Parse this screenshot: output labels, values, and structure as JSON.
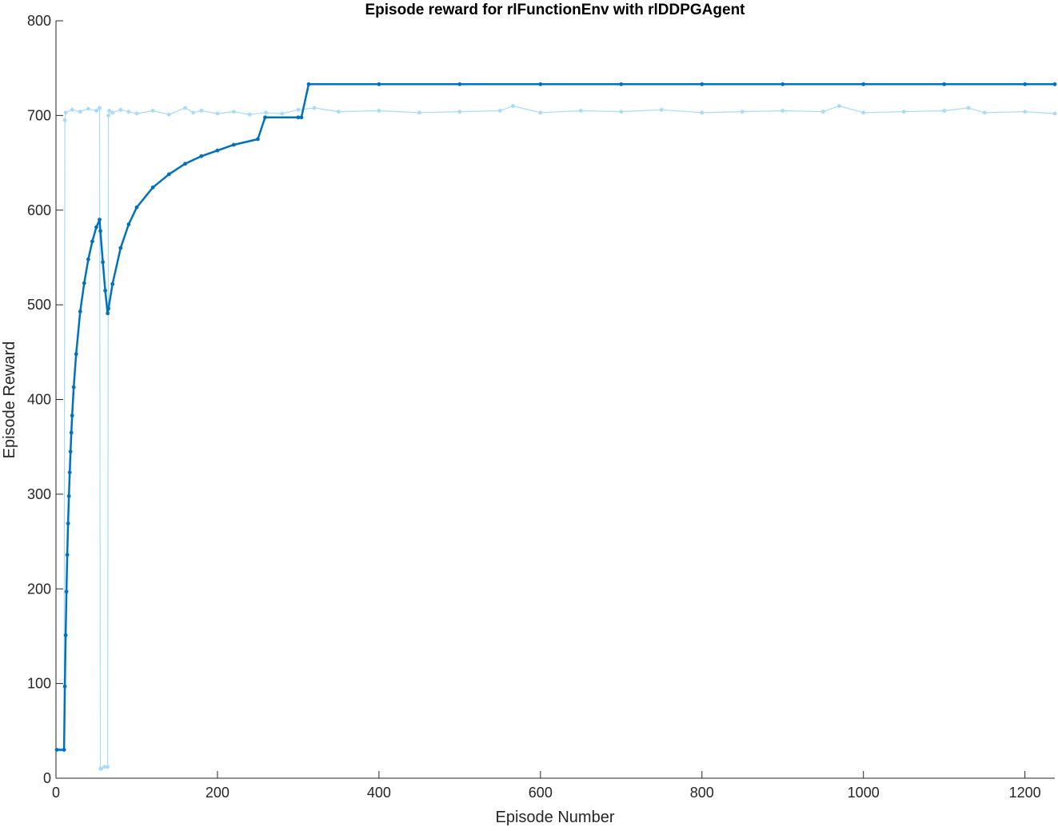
{
  "chart_data": {
    "type": "line",
    "title": "Episode reward for rlFunctionEnv with rlDDPGAgent",
    "xlabel": "Episode Number",
    "ylabel": "Episode Reward",
    "xlim": [
      0,
      1237
    ],
    "ylim": [
      0,
      800
    ],
    "x_ticks": [
      "0",
      "200",
      "400",
      "600",
      "800",
      "1000",
      "1200"
    ],
    "y_ticks": [
      "0",
      "100",
      "200",
      "300",
      "400",
      "500",
      "600",
      "700",
      "800"
    ],
    "grid": false,
    "legend": "none",
    "colors": {
      "episode_reward": "#a6dcf7",
      "average_reward": "#0072bd",
      "axes": "#262626"
    },
    "series": [
      {
        "key": "episode_reward",
        "x": [
          1,
          5,
          9,
          10,
          11,
          12,
          20,
          30,
          40,
          50,
          54,
          55,
          56,
          60,
          64,
          65,
          66,
          70,
          80,
          90,
          100,
          120,
          140,
          160,
          170,
          180,
          200,
          220,
          240,
          260,
          280,
          300,
          320,
          350,
          400,
          450,
          500,
          550,
          566,
          600,
          650,
          700,
          750,
          800,
          850,
          900,
          950,
          970,
          1000,
          1050,
          1100,
          1130,
          1150,
          1200,
          1237
        ],
        "y": [
          30,
          30,
          30,
          30,
          695,
          703,
          706,
          704,
          707,
          705,
          708,
          10,
          10,
          12,
          12,
          700,
          705,
          703,
          706,
          704,
          702,
          705,
          701,
          708,
          703,
          705,
          702,
          704,
          701,
          703,
          702,
          706,
          708,
          704,
          705,
          703,
          704,
          705,
          710,
          703,
          705,
          704,
          706,
          703,
          704,
          705,
          704,
          710,
          703,
          704,
          705,
          708,
          703,
          704,
          702
        ]
      },
      {
        "key": "average_reward",
        "x": [
          1,
          10,
          11,
          12,
          13,
          14,
          15,
          16,
          17,
          18,
          19,
          20,
          22,
          25,
          30,
          35,
          40,
          45,
          50,
          54,
          55,
          58,
          61,
          64,
          65,
          70,
          80,
          90,
          100,
          120,
          140,
          160,
          180,
          200,
          220,
          250,
          259,
          300,
          304,
          313,
          400,
          500,
          600,
          700,
          800,
          900,
          1000,
          1100,
          1200,
          1237
        ],
        "y": [
          30,
          30,
          97,
          151,
          197,
          236,
          269,
          298,
          323,
          345,
          365,
          383,
          413,
          448,
          493,
          523,
          548,
          567,
          582,
          590,
          578,
          545,
          515,
          491,
          496,
          522,
          560,
          585,
          603,
          624,
          638,
          649,
          657,
          663,
          669,
          675,
          698,
          698,
          698,
          733,
          733,
          733,
          733,
          733,
          733,
          733,
          733,
          733,
          733,
          733
        ]
      }
    ]
  }
}
